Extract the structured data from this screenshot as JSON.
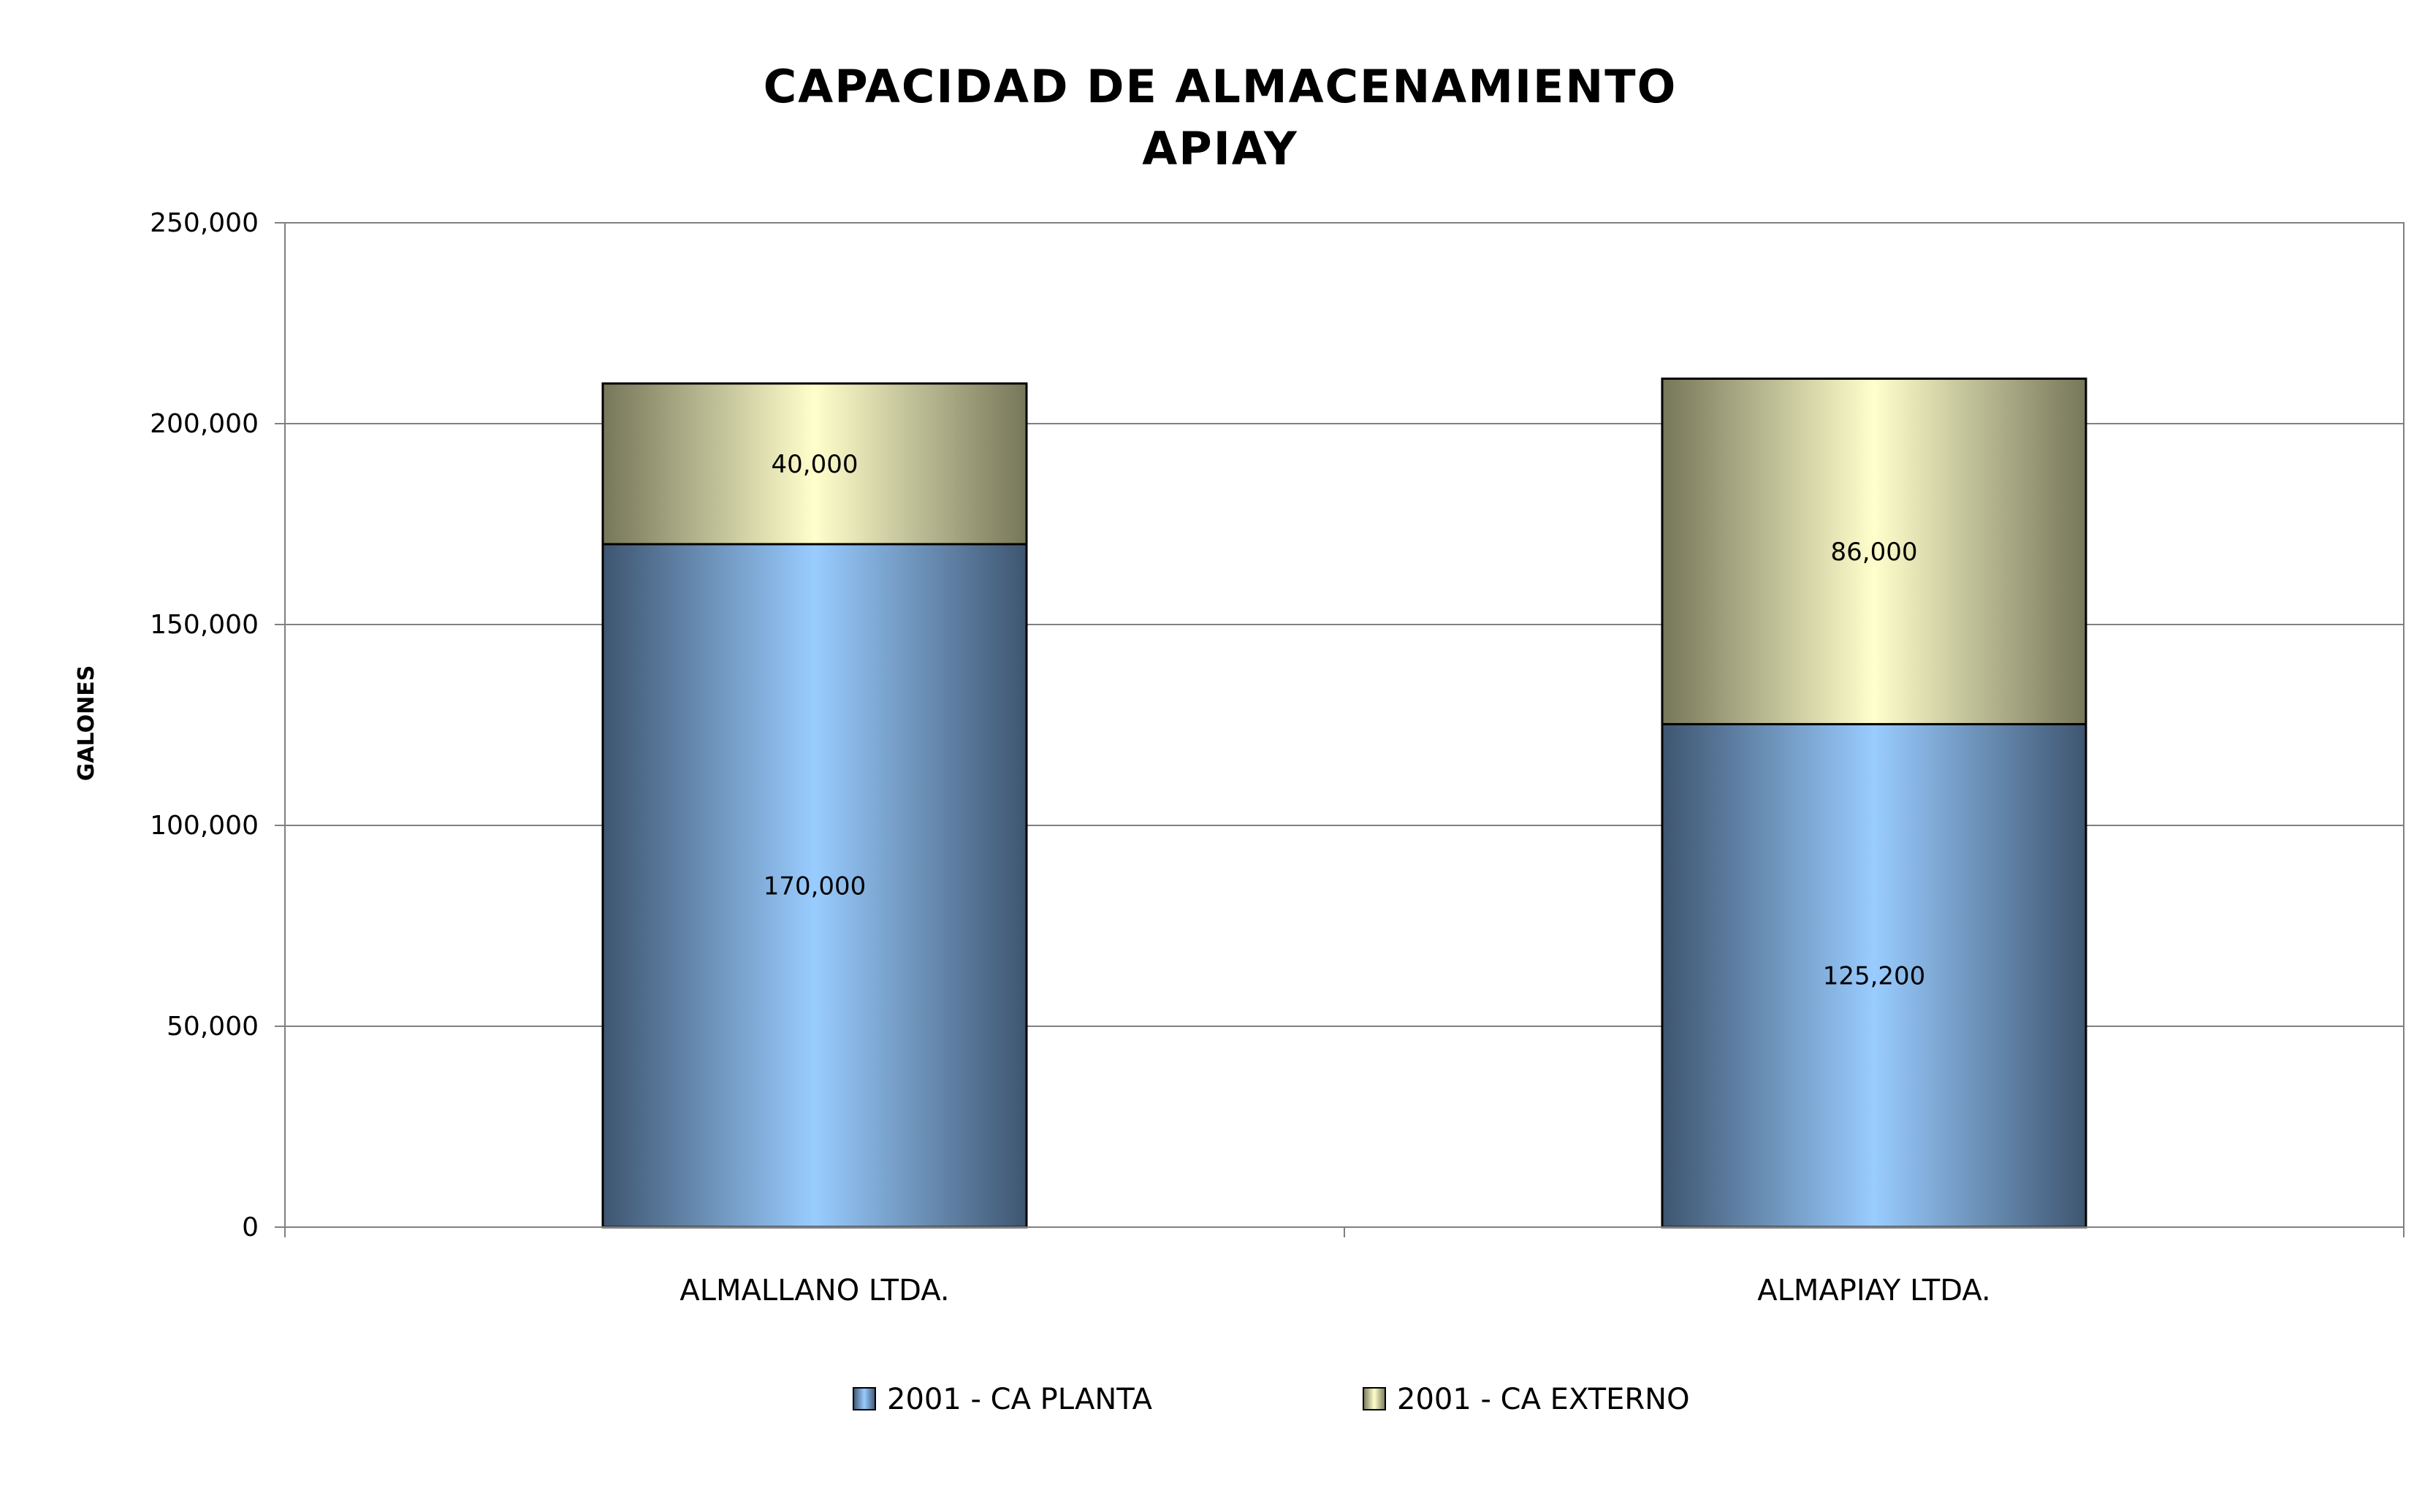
{
  "chart_data": {
    "type": "bar",
    "stacked": true,
    "title": "CAPACIDAD DE ALMACENAMIENTO",
    "subtitle": "APIAY",
    "ylabel": "GALONES",
    "xlabel": "",
    "ylim": [
      0,
      250000
    ],
    "y_ticks": [
      0,
      50000,
      100000,
      150000,
      200000,
      250000
    ],
    "y_tick_labels": [
      "0",
      "50,000",
      "100,000",
      "150,000",
      "200,000",
      "250,000"
    ],
    "grid": true,
    "legend_position": "bottom",
    "categories": [
      "ALMALLANO LTDA.",
      "ALMAPIAY LTDA."
    ],
    "series": [
      {
        "name": "2001 - CA  PLANTA",
        "values": [
          170000,
          125200
        ],
        "labels": [
          "170,000",
          "125,200"
        ],
        "color_light": "#99ccff",
        "color_dark": "#3e5570"
      },
      {
        "name": "2001 - CA EXTERNO",
        "values": [
          40000,
          86000
        ],
        "labels": [
          "40,000",
          "86,000"
        ],
        "color_light": "#ffffcc",
        "color_dark": "#76765a"
      }
    ]
  }
}
